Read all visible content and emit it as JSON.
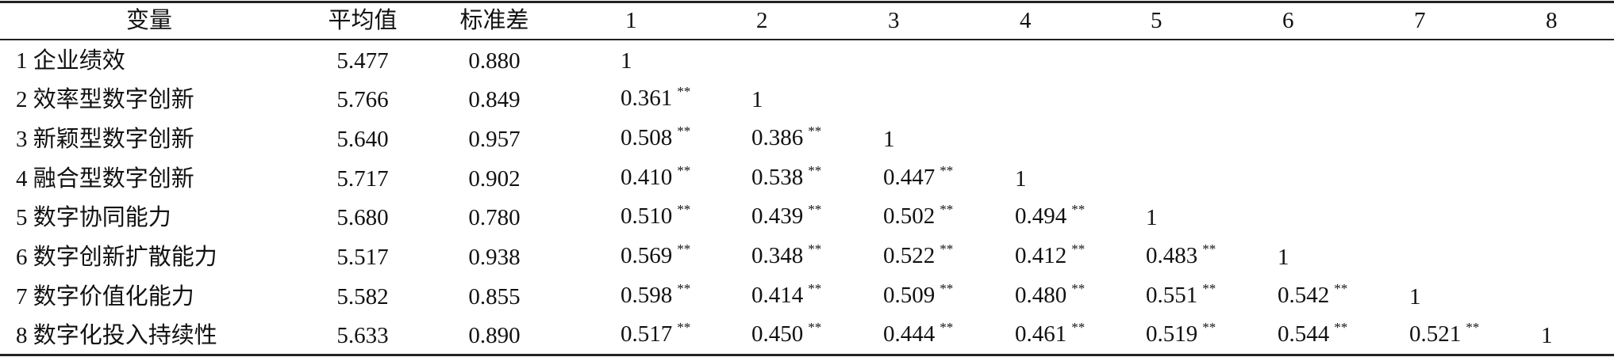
{
  "table": {
    "headers": [
      "变量",
      "平均值",
      "标准差",
      "1",
      "2",
      "3",
      "4",
      "5",
      "6",
      "7",
      "8"
    ],
    "rows": [
      {
        "variable": "1 企业绩效",
        "mean": "5.477",
        "sd": "0.880",
        "correlations": [
          {
            "value": "1"
          }
        ]
      },
      {
        "variable": "2 效率型数字创新",
        "mean": "5.766",
        "sd": "0.849",
        "correlations": [
          {
            "value": "0.361",
            "sig": "**"
          },
          {
            "value": "1"
          }
        ]
      },
      {
        "variable": "3 新颖型数字创新",
        "mean": "5.640",
        "sd": "0.957",
        "correlations": [
          {
            "value": "0.508",
            "sig": "**"
          },
          {
            "value": "0.386",
            "sig": "**"
          },
          {
            "value": "1"
          }
        ]
      },
      {
        "variable": "4 融合型数字创新",
        "mean": "5.717",
        "sd": "0.902",
        "correlations": [
          {
            "value": "0.410",
            "sig": "**"
          },
          {
            "value": "0.538",
            "sig": "**"
          },
          {
            "value": "0.447",
            "sig": "**"
          },
          {
            "value": "1"
          }
        ]
      },
      {
        "variable": "5 数字协同能力",
        "mean": "5.680",
        "sd": "0.780",
        "correlations": [
          {
            "value": "0.510",
            "sig": "**"
          },
          {
            "value": "0.439",
            "sig": "**"
          },
          {
            "value": "0.502",
            "sig": "**"
          },
          {
            "value": "0.494",
            "sig": "**"
          },
          {
            "value": "1"
          }
        ]
      },
      {
        "variable": "6 数字创新扩散能力",
        "mean": "5.517",
        "sd": "0.938",
        "correlations": [
          {
            "value": "0.569",
            "sig": "**"
          },
          {
            "value": "0.348",
            "sig": "**"
          },
          {
            "value": "0.522",
            "sig": "**"
          },
          {
            "value": "0.412",
            "sig": "**"
          },
          {
            "value": "0.483",
            "sig": "**"
          },
          {
            "value": "1"
          }
        ]
      },
      {
        "variable": "7 数字价值化能力",
        "mean": "5.582",
        "sd": "0.855",
        "correlations": [
          {
            "value": "0.598",
            "sig": "**"
          },
          {
            "value": "0.414",
            "sig": "**"
          },
          {
            "value": "0.509",
            "sig": "**"
          },
          {
            "value": "0.480",
            "sig": "**"
          },
          {
            "value": "0.551",
            "sig": "**"
          },
          {
            "value": "0.542",
            "sig": "**"
          },
          {
            "value": "1"
          }
        ]
      },
      {
        "variable": "8 数字化投入持续性",
        "mean": "5.633",
        "sd": "0.890",
        "correlations": [
          {
            "value": "0.517",
            "sig": "**"
          },
          {
            "value": "0.450",
            "sig": "**"
          },
          {
            "value": "0.444",
            "sig": "**"
          },
          {
            "value": "0.461",
            "sig": "**"
          },
          {
            "value": "0.519",
            "sig": "**"
          },
          {
            "value": "0.544",
            "sig": "**"
          },
          {
            "value": "0.521",
            "sig": "**"
          },
          {
            "value": "1"
          }
        ]
      }
    ]
  }
}
